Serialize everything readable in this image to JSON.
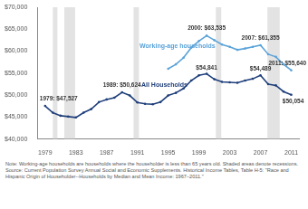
{
  "chart_data": {
    "type": "line",
    "series": [
      {
        "name": "Working-age households",
        "color": "#5ba3d9",
        "marker": "circle",
        "x": [
          1995,
          1996,
          1997,
          1998,
          1999,
          2000,
          2001,
          2002,
          2003,
          2004,
          2005,
          2006,
          2007,
          2008,
          2009,
          2010,
          2011
        ],
        "values": [
          56000,
          57000,
          58500,
          60800,
          62300,
          63535,
          62500,
          61500,
          61000,
          60300,
          60600,
          61000,
          61355,
          59300,
          58700,
          57000,
          55640
        ]
      },
      {
        "name": "All Households",
        "color": "#1f3f7a",
        "marker": "circle",
        "x": [
          1979,
          1980,
          1981,
          1982,
          1983,
          1984,
          1985,
          1986,
          1987,
          1988,
          1989,
          1990,
          1991,
          1992,
          1993,
          1994,
          1995,
          1996,
          1997,
          1998,
          1999,
          2000,
          2001,
          2002,
          2003,
          2004,
          2005,
          2006,
          2007,
          2008,
          2009,
          2010,
          2011
        ],
        "values": [
          47527,
          46000,
          45300,
          45100,
          44900,
          46000,
          46800,
          48400,
          49000,
          49400,
          50624,
          49900,
          48300,
          48000,
          47900,
          48400,
          49900,
          50500,
          51500,
          53300,
          54500,
          54841,
          53600,
          53000,
          52900,
          52800,
          53300,
          53700,
          54489,
          52500,
          52200,
          50800,
          50054
        ]
      }
    ],
    "recessions": [
      [
        1980.0,
        1980.6
      ],
      [
        1981.5,
        1982.9
      ],
      [
        1990.5,
        1991.2
      ],
      [
        2001.2,
        2001.9
      ],
      [
        2007.9,
        2009.5
      ]
    ],
    "annotations": [
      {
        "x": 1979,
        "y": 47527,
        "text": "1979: $47,527"
      },
      {
        "x": 1989,
        "y": 50624,
        "text": "1989: $50,624"
      },
      {
        "x": 2000,
        "y": 63535,
        "text": "2000: $63,535"
      },
      {
        "x": 2007,
        "y": 61355,
        "text": "2007: $61,355"
      },
      {
        "x": 2011,
        "y": 55640,
        "text": "2011: $55,640"
      },
      {
        "x": 2000,
        "y": 54841,
        "text": "$54,841"
      },
      {
        "x": 2007,
        "y": 54489,
        "text": "$54,489"
      },
      {
        "x": 2011,
        "y": 50054,
        "text": "$50,054"
      }
    ],
    "xlim": [
      1978,
      2012
    ],
    "xticks": [
      1979,
      1983,
      1987,
      1991,
      1995,
      1999,
      2003,
      2007,
      2011
    ],
    "ylim": [
      40000,
      70000
    ],
    "yticks": [
      {
        "value": 40000,
        "label": "$40,000"
      },
      {
        "value": 45000,
        "label": "$45,000"
      },
      {
        "value": 50000,
        "label": "$50,000"
      },
      {
        "value": 55000,
        "label": "$55,000"
      },
      {
        "value": 60000,
        "label": "$60,000"
      },
      {
        "value": 65000,
        "label": "$65,000"
      },
      {
        "value": 70000,
        "label": "$70,000"
      }
    ],
    "grid": false,
    "legend": false,
    "notes": [
      "Note: Working-age households are households where the householder is less than 65 years old. Shaded areas denote recessions.",
      "Source: Current Population Survey Annual Social and Economic Supplements. Historical Income Tables, Table H-5: \"Race and Hispanic Origin of Householder--Households by Median and Mean Income: 1967–2011.\""
    ]
  }
}
